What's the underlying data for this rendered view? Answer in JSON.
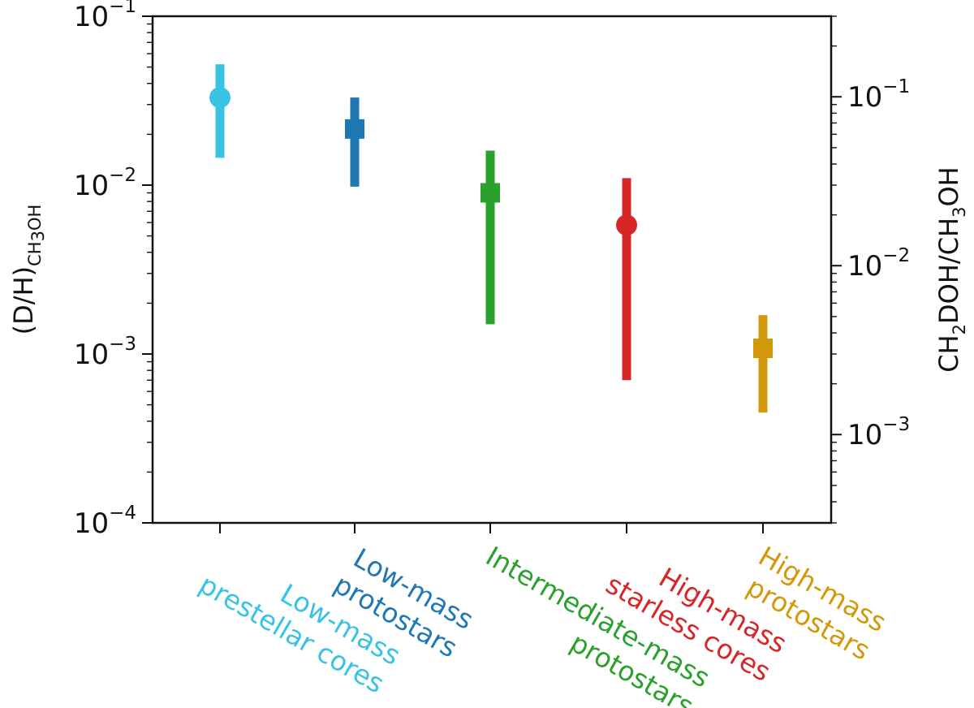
{
  "chart_data": {
    "type": "scatter",
    "style": "points-with-vertical-error-bars",
    "y_scale": "log",
    "ylim": [
      0.0001,
      0.1
    ],
    "y_ticks": [
      {
        "value": 0.1,
        "base": "10",
        "exp": "−1"
      },
      {
        "value": 0.01,
        "base": "10",
        "exp": "−2"
      },
      {
        "value": 0.001,
        "base": "10",
        "exp": "−3"
      },
      {
        "value": 0.0001,
        "base": "10",
        "exp": "−4"
      }
    ],
    "ylabel": {
      "main": "(D/H)",
      "sub_parts": [
        {
          "text": "CH",
          "shift": false
        },
        {
          "text": "3",
          "shift": true
        },
        {
          "text": "OH",
          "shift": false
        }
      ]
    },
    "secondary_y": {
      "scale": "log",
      "factor": 3,
      "ylim": [
        0.0003,
        0.3
      ],
      "ticks": [
        {
          "value": 0.1,
          "base": "10",
          "exp": "−1"
        },
        {
          "value": 0.01,
          "base": "10",
          "exp": "−2"
        },
        {
          "value": 0.001,
          "base": "10",
          "exp": "−3"
        }
      ],
      "label_parts": [
        {
          "text": "CH",
          "shift": false
        },
        {
          "text": "2",
          "shift": true
        },
        {
          "text": "DOH/CH",
          "shift": false
        },
        {
          "text": "3",
          "shift": true
        },
        {
          "text": "OH",
          "shift": false
        }
      ]
    },
    "categories": [
      {
        "lines": [
          "Low-mass",
          "prestellar cores"
        ],
        "value": 0.033,
        "low": 0.0145,
        "high": 0.052,
        "marker": "circle",
        "color": "#38c3e4"
      },
      {
        "lines": [
          "Low-mass",
          "protostars"
        ],
        "value": 0.0215,
        "low": 0.0098,
        "high": 0.033,
        "marker": "square",
        "color": "#1f77b4"
      },
      {
        "lines": [
          "Intermediate-mass",
          "protostars"
        ],
        "value": 0.009,
        "low": 0.0015,
        "high": 0.016,
        "marker": "square",
        "color": "#2ca02c"
      },
      {
        "lines": [
          "High-mass",
          "starless cores"
        ],
        "value": 0.0058,
        "low": 0.0007,
        "high": 0.011,
        "marker": "circle",
        "color": "#d62728"
      },
      {
        "lines": [
          "High-mass",
          "protostars"
        ],
        "value": 0.00108,
        "low": 0.00045,
        "high": 0.0017,
        "marker": "square",
        "color": "#d4980c"
      }
    ]
  }
}
